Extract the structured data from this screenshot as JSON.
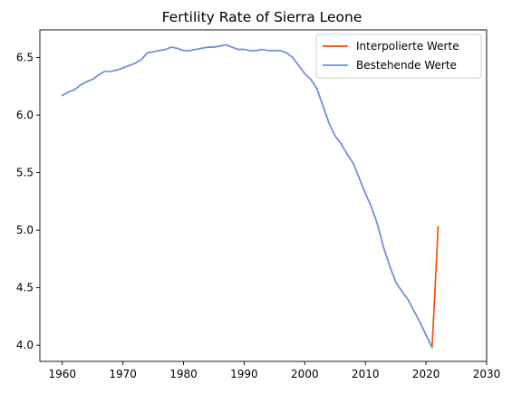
{
  "chart_data": {
    "type": "line",
    "title": "Fertility Rate of Sierra Leone",
    "xlabel": "",
    "ylabel": "",
    "xlim": [
      1956.3,
      2030
    ],
    "ylim": [
      3.86,
      6.74
    ],
    "xticks": [
      1960,
      1970,
      1980,
      1990,
      2000,
      2010,
      2020,
      2030
    ],
    "yticks": [
      4.0,
      4.5,
      5.0,
      5.5,
      6.0,
      6.5
    ],
    "xtick_labels": [
      "1960",
      "1970",
      "1980",
      "1990",
      "2000",
      "2010",
      "2020",
      "2030"
    ],
    "ytick_labels": [
      "4.0",
      "4.5",
      "5.0",
      "5.5",
      "6.0",
      "6.5"
    ],
    "grid": false,
    "legend_position": "top-right",
    "series": [
      {
        "name": "Interpolierte Werte",
        "color": "#ff4500",
        "x": [
          1960,
          1961,
          1962,
          1963,
          1964,
          1965,
          1966,
          1967,
          1968,
          1969,
          1970,
          1971,
          1972,
          1973,
          1974,
          1975,
          1976,
          1977,
          1978,
          1979,
          1980,
          1981,
          1982,
          1983,
          1984,
          1985,
          1986,
          1987,
          1988,
          1989,
          1990,
          1991,
          1992,
          1993,
          1994,
          1995,
          1996,
          1997,
          1998,
          1999,
          2000,
          2001,
          2002,
          2003,
          2004,
          2005,
          2006,
          2007,
          2008,
          2009,
          2010,
          2011,
          2012,
          2013,
          2014,
          2015,
          2016,
          2017,
          2018,
          2019,
          2020,
          2021,
          2022
        ],
        "y": [
          6.17,
          6.2,
          6.22,
          6.26,
          6.29,
          6.31,
          6.35,
          6.38,
          6.38,
          6.39,
          6.41,
          6.43,
          6.45,
          6.48,
          6.54,
          6.55,
          6.56,
          6.57,
          6.59,
          6.58,
          6.56,
          6.56,
          6.57,
          6.58,
          6.59,
          6.59,
          6.6,
          6.61,
          6.59,
          6.57,
          6.57,
          6.56,
          6.56,
          6.57,
          6.56,
          6.56,
          6.56,
          6.54,
          6.5,
          6.43,
          6.36,
          6.31,
          6.23,
          6.08,
          5.93,
          5.82,
          5.75,
          5.66,
          5.58,
          5.45,
          5.32,
          5.2,
          5.05,
          4.85,
          4.69,
          4.55,
          4.47,
          4.4,
          4.3,
          4.2,
          4.09,
          3.98,
          5.03
        ]
      },
      {
        "name": "Bestehende Werte",
        "color": "#6495ed",
        "x": [
          1960,
          1961,
          1962,
          1963,
          1964,
          1965,
          1966,
          1967,
          1968,
          1969,
          1970,
          1971,
          1972,
          1973,
          1974,
          1975,
          1976,
          1977,
          1978,
          1979,
          1980,
          1981,
          1982,
          1983,
          1984,
          1985,
          1986,
          1987,
          1988,
          1989,
          1990,
          1991,
          1992,
          1993,
          1994,
          1995,
          1996,
          1997,
          1998,
          1999,
          2000,
          2001,
          2002,
          2003,
          2004,
          2005,
          2006,
          2007,
          2008,
          2009,
          2010,
          2011,
          2012,
          2013,
          2014,
          2015,
          2016,
          2017,
          2018,
          2019,
          2020,
          2021
        ],
        "y": [
          6.17,
          6.2,
          6.22,
          6.26,
          6.29,
          6.31,
          6.35,
          6.38,
          6.38,
          6.39,
          6.41,
          6.43,
          6.45,
          6.48,
          6.54,
          6.55,
          6.56,
          6.57,
          6.59,
          6.58,
          6.56,
          6.56,
          6.57,
          6.58,
          6.59,
          6.59,
          6.6,
          6.61,
          6.59,
          6.57,
          6.57,
          6.56,
          6.56,
          6.57,
          6.56,
          6.56,
          6.56,
          6.54,
          6.5,
          6.43,
          6.36,
          6.31,
          6.23,
          6.08,
          5.93,
          5.82,
          5.75,
          5.66,
          5.58,
          5.45,
          5.32,
          5.2,
          5.05,
          4.85,
          4.69,
          4.55,
          4.47,
          4.4,
          4.3,
          4.2,
          4.09,
          3.98
        ]
      }
    ]
  }
}
